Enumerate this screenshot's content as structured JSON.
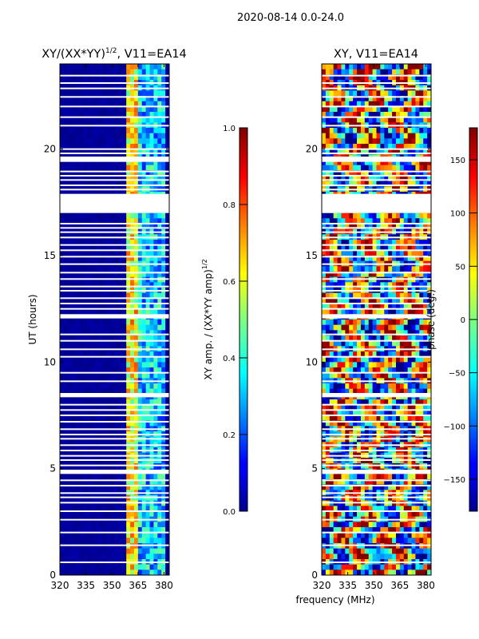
{
  "figure": {
    "suptitle": "2020-08-14 0.0-24.0",
    "xlabel_shared": "frequency (MHz)"
  },
  "chart_data": [
    {
      "type": "heatmap",
      "title": "XY/(XX*YY)^1/2, V11=EA14",
      "title_main": "XY/(XX*YY)",
      "title_sup": "1/2",
      "title_tail": ", V11=EA14",
      "xlabel": "",
      "ylabel": "UT (hours)",
      "xlim": [
        320,
        383
      ],
      "ylim": [
        0,
        24
      ],
      "xticks": [
        320,
        335,
        350,
        365,
        380
      ],
      "yticks": [
        0,
        5,
        10,
        15,
        20
      ],
      "colorbar": {
        "label": "XY amp. / (XX*YY amp)^1/2",
        "label_main": "XY amp. / (XX*YY amp)",
        "label_sup": "1/2",
        "range": [
          0.0,
          1.0
        ],
        "ticks": [
          "0.0",
          "0.2",
          "0.4",
          "0.6",
          "0.8",
          "1.0"
        ],
        "tick_values": [
          0,
          0.2,
          0.4,
          0.6,
          0.8,
          1.0
        ]
      }
    },
    {
      "type": "heatmap",
      "title": "XY, V11=EA14",
      "xlabel": "frequency (MHz)",
      "ylabel": "",
      "xlim": [
        320,
        383
      ],
      "ylim": [
        0,
        24
      ],
      "xticks": [
        320,
        335,
        350,
        365,
        380
      ],
      "yticks": [
        0,
        5,
        10,
        15,
        20
      ],
      "colorbar": {
        "label": "phase (deg.)",
        "range": [
          -180,
          180
        ],
        "ticks": [
          "150",
          "100",
          "50",
          "0",
          "−50",
          "−100",
          "−150"
        ],
        "tick_values": [
          150,
          100,
          50,
          0,
          -50,
          -100,
          -150
        ]
      }
    }
  ],
  "data_gaps_hours": [
    [
      17.0,
      17.9
    ],
    [
      19.4,
      19.65
    ],
    [
      12.05,
      12.25
    ],
    [
      8.35,
      8.55
    ],
    [
      4.75,
      4.95
    ]
  ],
  "flag_lines_hours": [
    0.6,
    1.4,
    2.0,
    2.6,
    3.0,
    3.4,
    3.65,
    3.85,
    4.2,
    4.45,
    5.15,
    5.4,
    5.6,
    5.85,
    6.1,
    6.4,
    6.6,
    6.85,
    7.2,
    7.5,
    7.75,
    8.0,
    9.1,
    9.5,
    10.25,
    10.6,
    11.0,
    11.3,
    12.5,
    12.75,
    13.0,
    13.35,
    13.55,
    13.9,
    14.2,
    14.6,
    14.95,
    15.25,
    15.5,
    15.85,
    16.1,
    16.3,
    16.5,
    18.1,
    18.3,
    18.55,
    18.75,
    18.95,
    19.8,
    20.0,
    21.1,
    21.5,
    22.0,
    22.45,
    22.85,
    23.1,
    23.45
  ],
  "colors": {
    "jet_dark_blue": "#00008f",
    "jet_dark_red": "#800000",
    "background": "#ffffff"
  }
}
